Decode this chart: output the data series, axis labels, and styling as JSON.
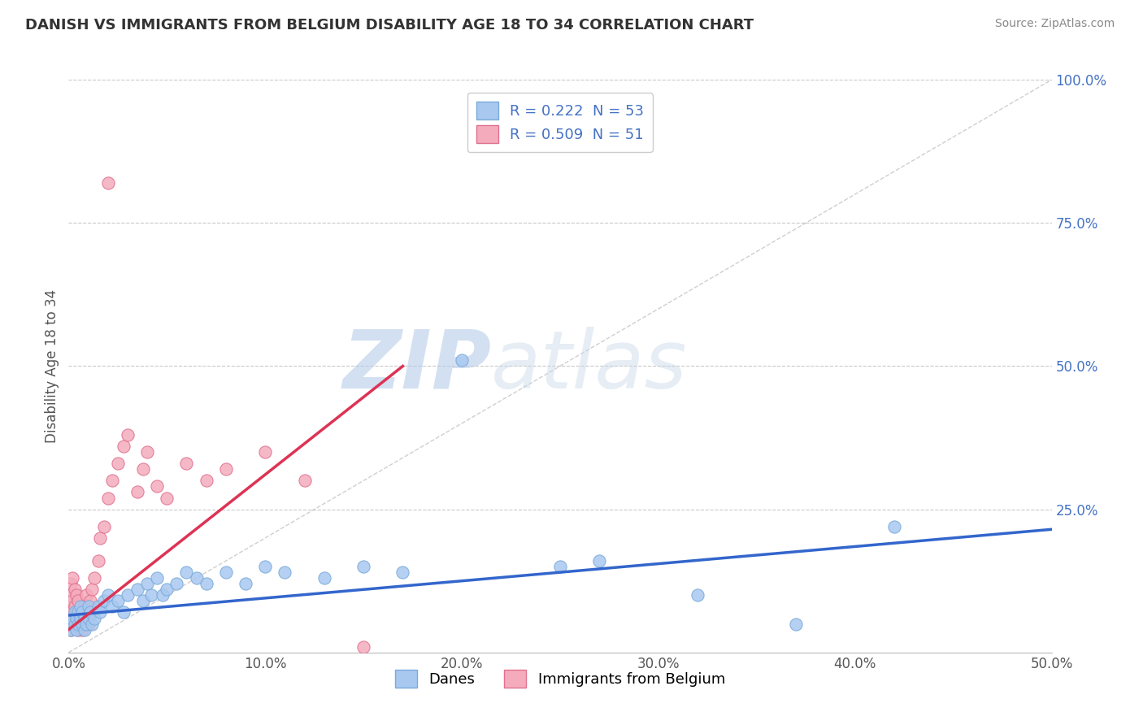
{
  "title": "DANISH VS IMMIGRANTS FROM BELGIUM DISABILITY AGE 18 TO 34 CORRELATION CHART",
  "source": "Source: ZipAtlas.com",
  "ylabel": "Disability Age 18 to 34",
  "xlim": [
    0.0,
    0.5
  ],
  "ylim": [
    0.0,
    1.0
  ],
  "xtick_labels": [
    "0.0%",
    "10.0%",
    "20.0%",
    "30.0%",
    "40.0%",
    "50.0%"
  ],
  "xtick_vals": [
    0.0,
    0.1,
    0.2,
    0.3,
    0.4,
    0.5
  ],
  "ytick_labels": [
    "",
    "25.0%",
    "50.0%",
    "75.0%",
    "100.0%"
  ],
  "ytick_vals": [
    0.0,
    0.25,
    0.5,
    0.75,
    1.0
  ],
  "danes_color": "#A8C8F0",
  "danes_edge_color": "#7AAAD8",
  "immigrants_color": "#F4ACBC",
  "immigrants_edge_color": "#E07090",
  "danes_R": "0.222",
  "danes_N": "53",
  "immigrants_R": "0.509",
  "immigrants_N": "51",
  "danes_line_color": "#3366CC",
  "immigrants_line_color": "#DD3355",
  "legend_label_danes": "Danes",
  "legend_label_immigrants": "Immigrants from Belgium",
  "watermark_zip": "ZIP",
  "watermark_atlas": "atlas",
  "danes_x": [
    0.001,
    0.002,
    0.002,
    0.003,
    0.003,
    0.004,
    0.004,
    0.005,
    0.005,
    0.006,
    0.006,
    0.007,
    0.007,
    0.008,
    0.008,
    0.009,
    0.01,
    0.01,
    0.011,
    0.012,
    0.013,
    0.015,
    0.016,
    0.018,
    0.02,
    0.022,
    0.025,
    0.028,
    0.03,
    0.035,
    0.038,
    0.04,
    0.042,
    0.045,
    0.048,
    0.05,
    0.055,
    0.06,
    0.065,
    0.07,
    0.08,
    0.09,
    0.1,
    0.11,
    0.13,
    0.15,
    0.17,
    0.2,
    0.25,
    0.27,
    0.32,
    0.37,
    0.42
  ],
  "danes_y": [
    0.04,
    0.05,
    0.06,
    0.05,
    0.07,
    0.06,
    0.04,
    0.05,
    0.07,
    0.06,
    0.08,
    0.05,
    0.07,
    0.06,
    0.04,
    0.05,
    0.06,
    0.08,
    0.07,
    0.05,
    0.06,
    0.08,
    0.07,
    0.09,
    0.1,
    0.08,
    0.09,
    0.07,
    0.1,
    0.11,
    0.09,
    0.12,
    0.1,
    0.13,
    0.1,
    0.11,
    0.12,
    0.14,
    0.13,
    0.12,
    0.14,
    0.12,
    0.15,
    0.14,
    0.13,
    0.15,
    0.14,
    0.51,
    0.15,
    0.16,
    0.1,
    0.05,
    0.22
  ],
  "immigrants_x": [
    0.001,
    0.001,
    0.001,
    0.001,
    0.001,
    0.002,
    0.002,
    0.002,
    0.002,
    0.003,
    0.003,
    0.003,
    0.004,
    0.004,
    0.004,
    0.005,
    0.005,
    0.005,
    0.006,
    0.006,
    0.007,
    0.007,
    0.008,
    0.008,
    0.009,
    0.009,
    0.01,
    0.01,
    0.011,
    0.012,
    0.013,
    0.015,
    0.016,
    0.018,
    0.02,
    0.022,
    0.025,
    0.028,
    0.03,
    0.035,
    0.038,
    0.04,
    0.045,
    0.05,
    0.06,
    0.07,
    0.08,
    0.1,
    0.12,
    0.15,
    0.02
  ],
  "immigrants_y": [
    0.04,
    0.06,
    0.08,
    0.1,
    0.12,
    0.05,
    0.07,
    0.09,
    0.13,
    0.06,
    0.08,
    0.11,
    0.05,
    0.07,
    0.1,
    0.04,
    0.06,
    0.09,
    0.05,
    0.07,
    0.04,
    0.06,
    0.05,
    0.08,
    0.06,
    0.1,
    0.05,
    0.07,
    0.09,
    0.11,
    0.13,
    0.16,
    0.2,
    0.22,
    0.27,
    0.3,
    0.33,
    0.36,
    0.38,
    0.28,
    0.32,
    0.35,
    0.29,
    0.27,
    0.33,
    0.3,
    0.32,
    0.35,
    0.3,
    0.01,
    0.82
  ],
  "danes_trend_x": [
    0.0,
    0.5
  ],
  "danes_trend_y": [
    0.065,
    0.215
  ],
  "immigrants_trend_x": [
    0.0,
    0.17
  ],
  "immigrants_trend_y": [
    0.04,
    0.5
  ]
}
